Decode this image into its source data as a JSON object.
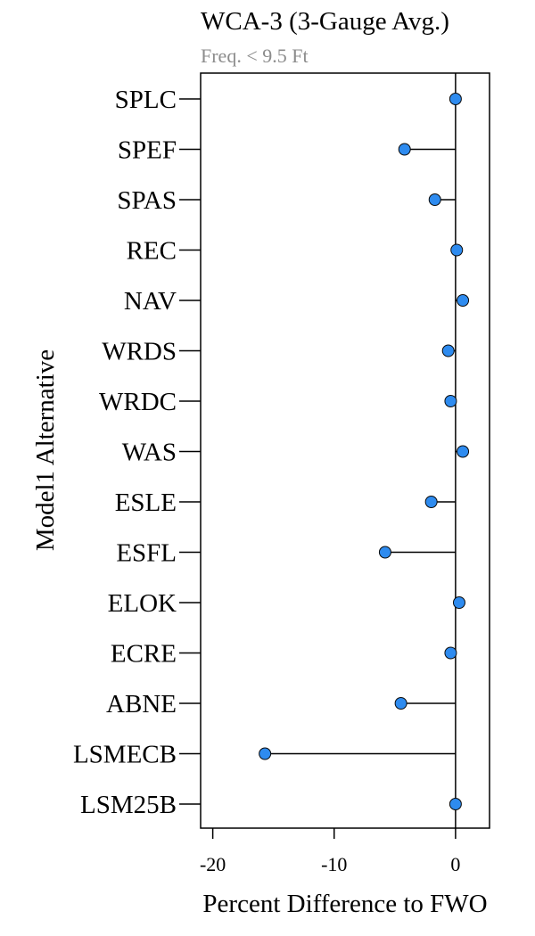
{
  "chart_data": {
    "type": "lollipop",
    "title": "WCA-3 (3-Gauge Avg.)",
    "subtitle": "Freq. < 9.5 Ft",
    "xlabel": "Percent Difference to FWO",
    "ylabel": "Model1 Alternative",
    "xlim": [
      -21,
      2.8
    ],
    "xticks": [
      -20,
      -10,
      0
    ],
    "xtick_labels": [
      "-20",
      "-10",
      "0"
    ],
    "reference_x": 0,
    "categories": [
      "SPLC",
      "SPEF",
      "SPAS",
      "REC",
      "NAV",
      "WRDS",
      "WRDC",
      "WAS",
      "ESLE",
      "ESFL",
      "ELOK",
      "ECRE",
      "ABNE",
      "LSMECB",
      "LSM25B"
    ],
    "values": [
      0.0,
      -4.2,
      -1.7,
      0.1,
      0.6,
      -0.6,
      -0.4,
      0.6,
      -2.0,
      -5.8,
      0.3,
      -0.4,
      -4.5,
      -15.7,
      0.0
    ],
    "grid": false,
    "legend": "none",
    "colors": {
      "point_fill": "#2E8BEF",
      "point_stroke": "#0a0a0a",
      "stem": "#000000",
      "subtitle": "#8c8c8c",
      "text": "#000000"
    }
  }
}
